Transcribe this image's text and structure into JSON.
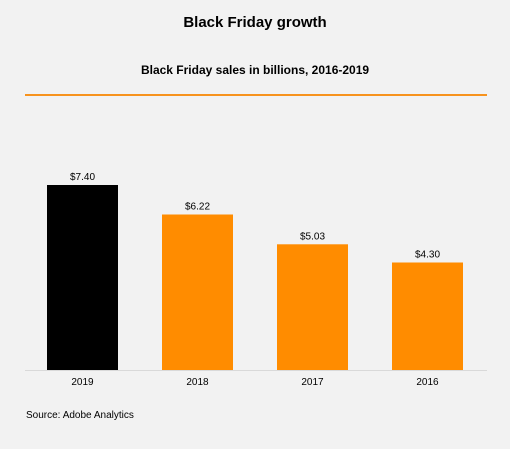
{
  "page": {
    "title": "Black Friday growth",
    "source": "Source: Adobe Analytics"
  },
  "chart_data": {
    "type": "bar",
    "title": "Black Friday sales in billions, 2016-2019",
    "categories": [
      "2019",
      "2018",
      "2017",
      "2016"
    ],
    "values": [
      7.4,
      6.22,
      5.03,
      4.3
    ],
    "data_labels": [
      "$7.40",
      "$6.22",
      "$5.03",
      "$4.30"
    ],
    "colors": [
      "#000000",
      "#ff8c00",
      "#ff8c00",
      "#ff8c00"
    ],
    "accent_color": "#f7931e",
    "xlabel": "",
    "ylabel": "",
    "ylim": [
      0,
      7.4
    ],
    "grid": false,
    "legend": "none"
  }
}
